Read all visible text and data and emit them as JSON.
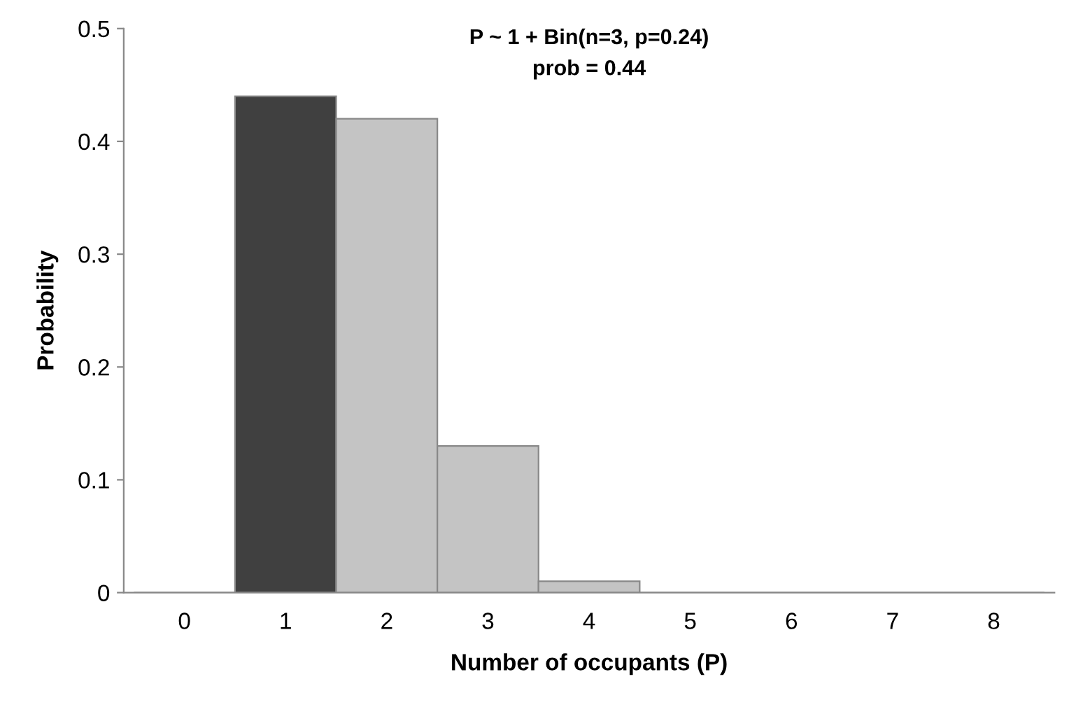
{
  "chart_data": {
    "type": "bar",
    "title": "P ~ 1 + Bin(n=3, p=0.24)",
    "subtitle": "prob = 0.44",
    "xlabel": "Number of occupants (P)",
    "ylabel": "Probability",
    "categories": [
      "0",
      "1",
      "2",
      "3",
      "4",
      "5",
      "6",
      "7",
      "8"
    ],
    "values": [
      0,
      0.44,
      0.42,
      0.13,
      0.01,
      0,
      0,
      0,
      0
    ],
    "colors": [
      "#c4c4c4",
      "#404040",
      "#c4c4c4",
      "#c4c4c4",
      "#c4c4c4",
      "#c4c4c4",
      "#c4c4c4",
      "#c4c4c4",
      "#c4c4c4"
    ],
    "ylim": [
      0,
      0.5
    ],
    "yticks": [
      0,
      0.1,
      0.2,
      0.3,
      0.4,
      0.5
    ],
    "grid": false,
    "legend": false
  }
}
